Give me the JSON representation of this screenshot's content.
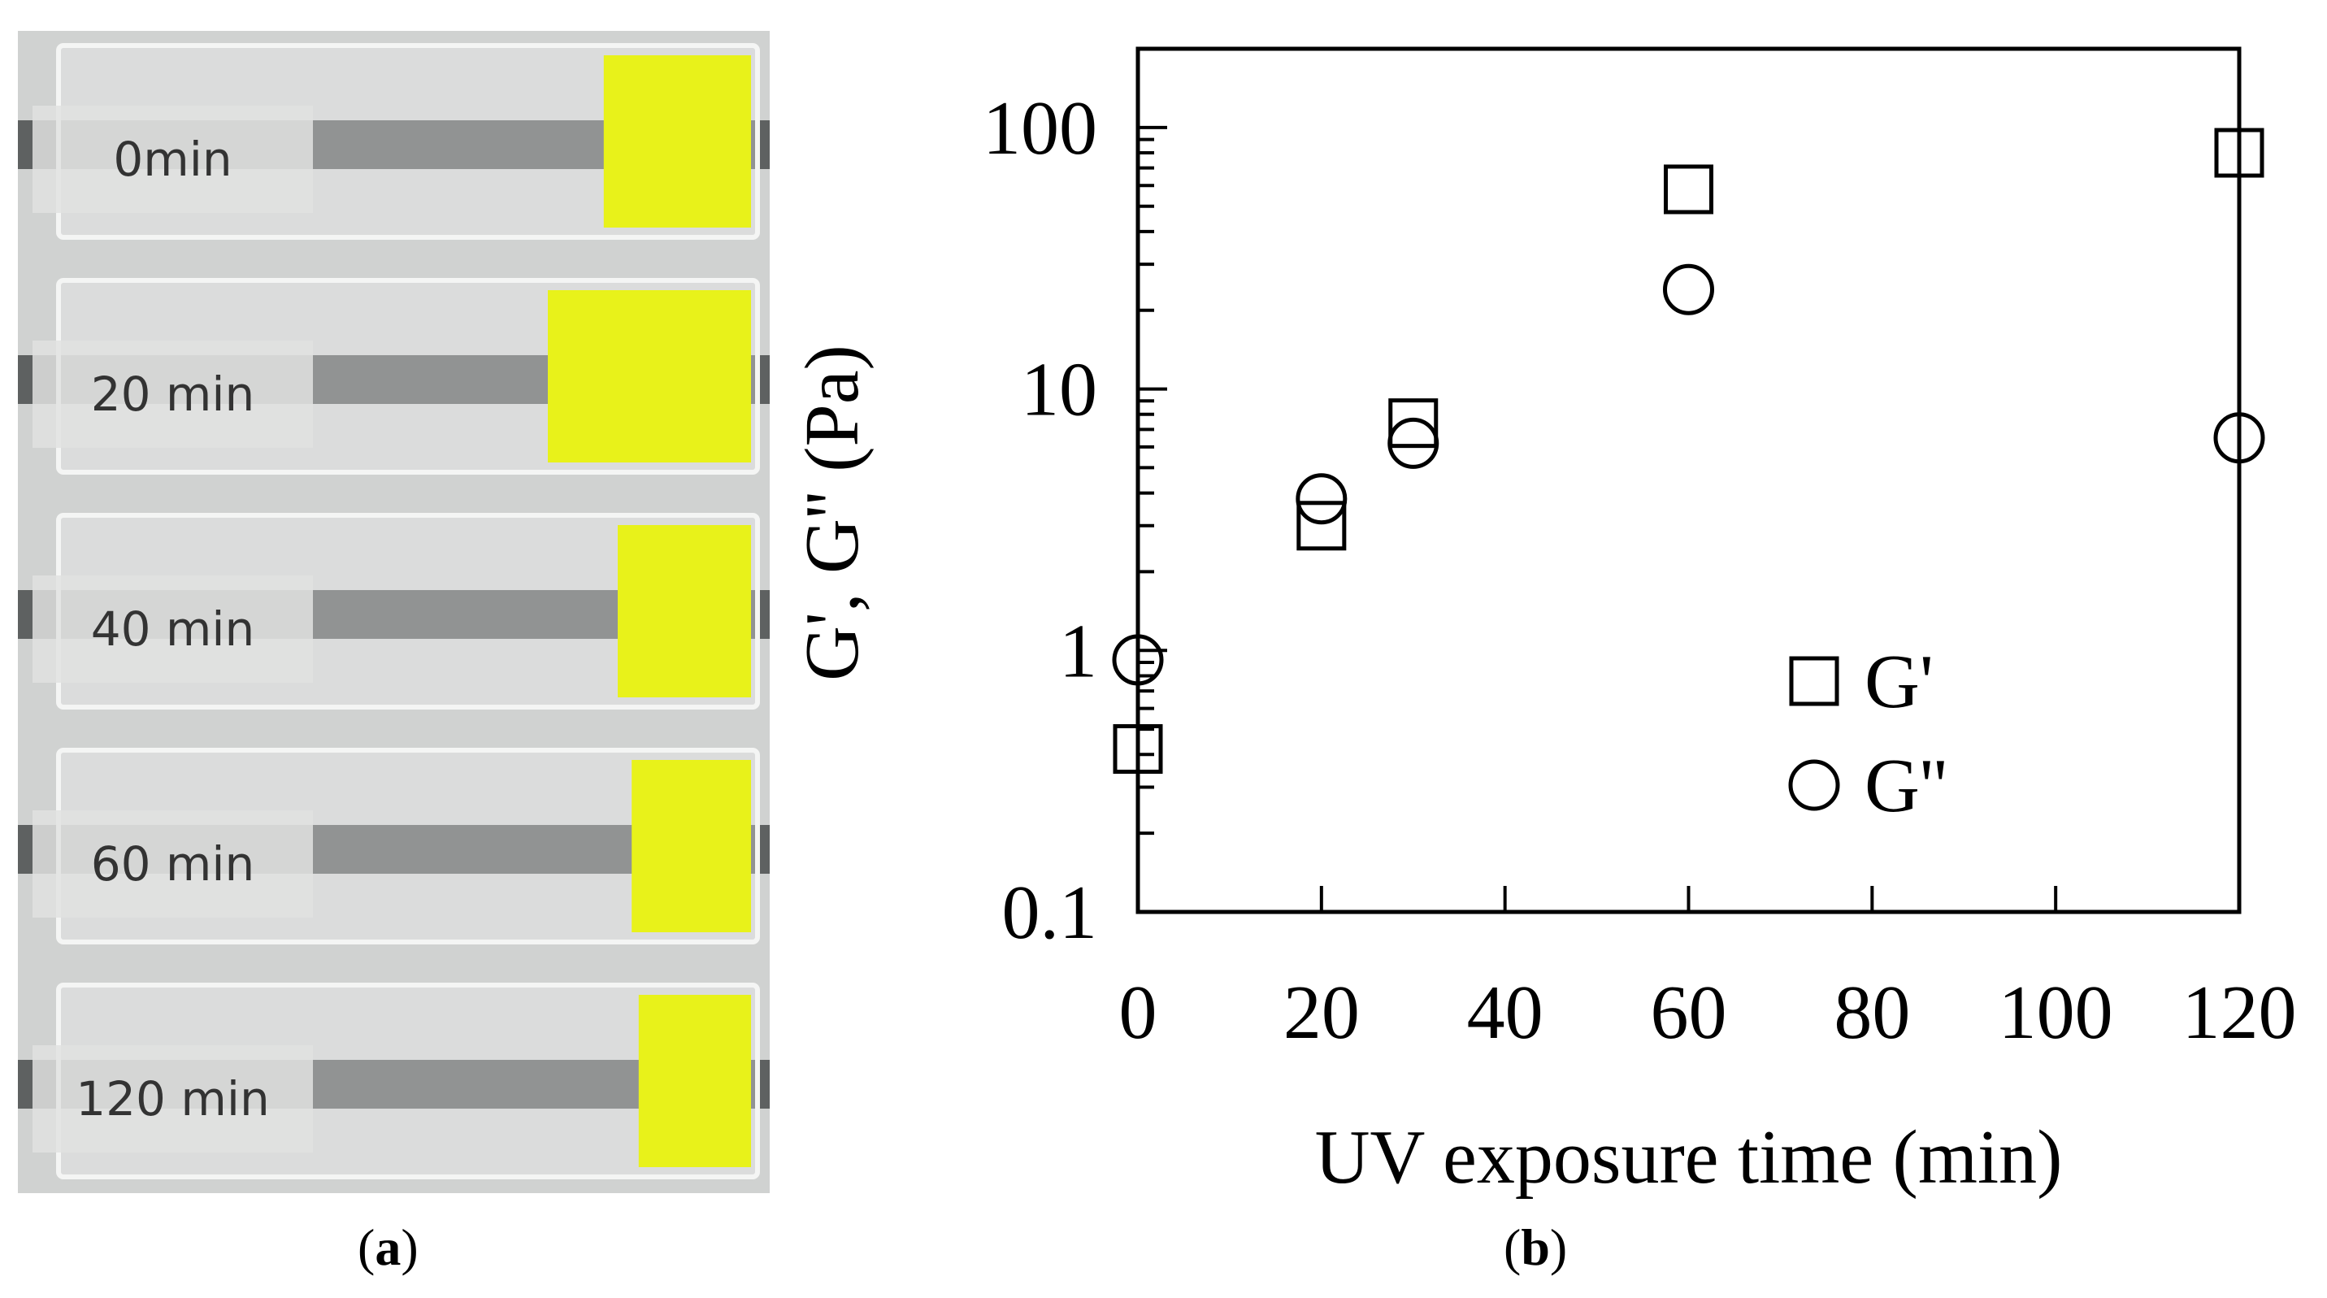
{
  "panel_a": {
    "caption_letter": "a",
    "vials": [
      {
        "label": "0min",
        "gel_fraction": 0.22
      },
      {
        "label": "20 min",
        "gel_fraction": 0.3
      },
      {
        "label": "40 min",
        "gel_fraction": 0.2
      },
      {
        "label": "60 min",
        "gel_fraction": 0.18
      },
      {
        "label": "120 min",
        "gel_fraction": 0.17
      }
    ],
    "colors": {
      "gel": "#e8f21a",
      "glass": "#c9ccca",
      "background": "#d0d2d1"
    }
  },
  "panel_b": {
    "caption_letter": "b"
  },
  "chart_data": {
    "type": "scatter",
    "title": "",
    "xlabel": "UV exposure time (min)",
    "ylabel": "G', G'' (Pa)",
    "xlim": [
      0,
      120
    ],
    "ylim": [
      0.1,
      200
    ],
    "yscale": "log",
    "x_ticks": [
      0,
      20,
      40,
      60,
      80,
      100,
      120
    ],
    "x_tick_labels": [
      "0",
      "20",
      "40",
      "60",
      "80",
      "100",
      "120"
    ],
    "y_ticks": [
      0.1,
      1,
      10,
      100
    ],
    "y_tick_labels": [
      "0.1",
      "1",
      "10",
      "100"
    ],
    "grid": false,
    "legend_position": "lower-right",
    "series": [
      {
        "name": "G'",
        "marker": "square",
        "x": [
          0,
          20,
          30,
          60,
          120
        ],
        "y": [
          0.42,
          3.0,
          7.4,
          58,
          80
        ]
      },
      {
        "name": "G''",
        "marker": "circle",
        "x": [
          0,
          20,
          30,
          60,
          120
        ],
        "y": [
          0.92,
          3.8,
          6.2,
          24,
          6.5
        ]
      }
    ]
  }
}
